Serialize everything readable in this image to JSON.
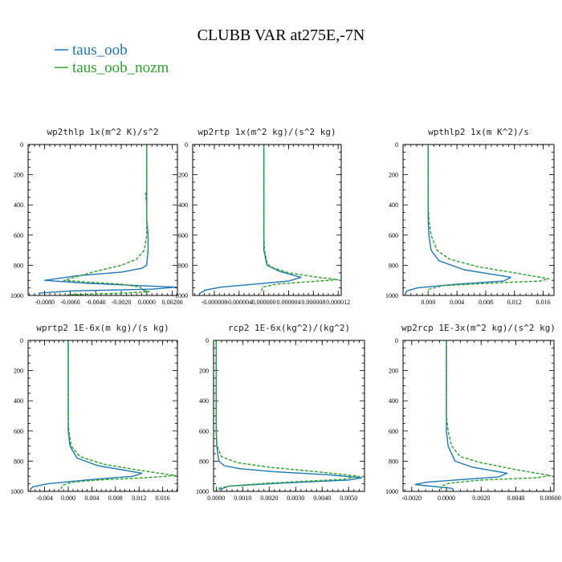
{
  "figure": {
    "title": "CLUBB VAR at275E,-7N",
    "legend": [
      {
        "label": "taus_oob",
        "color": "#1f77b4",
        "dash": "solid"
      },
      {
        "label": "taus_oob_nozm",
        "color": "#2ca02c",
        "dash": "dashed"
      }
    ]
  },
  "chart_data": [
    {
      "type": "line",
      "title": "wp2thlp  1x(m^2 K)/s^2",
      "xlim": [
        -0.0093,
        0.0024
      ],
      "ylim": [
        1000,
        0
      ],
      "xticks": [
        -0.008,
        -0.006,
        -0.004,
        -0.002,
        0,
        0.002
      ],
      "xticklabels": [
        "-0.0080",
        "-0.0060",
        "-0.0040",
        "-0.0020",
        "0.0000",
        "0.00200"
      ],
      "yticks": [
        0,
        200,
        400,
        600,
        800,
        1000
      ],
      "series": [
        {
          "name": "taus_oob",
          "x": [
            0,
            0,
            0,
            0,
            0,
            0,
            0.0001,
            0.0001,
            0,
            -0.0004,
            -0.002,
            -0.0055,
            -0.008,
            -0.0045,
            -0.0005,
            0.0023,
            0.0005,
            -0.006,
            -0.0085
          ],
          "y": [
            0,
            100,
            200,
            300,
            400,
            500,
            600,
            700,
            800,
            820,
            845,
            870,
            900,
            920,
            935,
            945,
            958,
            970,
            985
          ]
        },
        {
          "name": "taus_oob_nozm",
          "x": [
            0,
            0,
            0,
            0,
            -0.0001,
            0,
            0,
            0,
            -0.0002,
            -0.0008,
            -0.002,
            -0.004,
            -0.0065,
            -0.0048,
            -0.002,
            -0.0005,
            -0.0003,
            0.0002,
            -0.002,
            -0.0062
          ],
          "y": [
            0,
            100,
            200,
            300,
            320,
            400,
            500,
            600,
            700,
            760,
            800,
            840,
            900,
            910,
            925,
            945,
            965,
            975,
            985,
            995
          ]
        }
      ]
    },
    {
      "type": "line",
      "title": "wp2rtp  1x(m^2 kg)/(s^2 kg)",
      "xlim": [
        -1.15e-05,
        1.25e-05
      ],
      "ylim": [
        1000,
        0
      ],
      "xticks": [
        -8e-06,
        -4e-06,
        0,
        4e-06,
        8e-06,
        1.2e-05
      ],
      "xticklabels": [
        "-0.000008",
        "-0.000004",
        "0.000000",
        "0.000004",
        "0.000008",
        "0.000012"
      ],
      "yticks": [
        0,
        200,
        400,
        600,
        800,
        1000
      ],
      "series": [
        {
          "name": "taus_oob",
          "x": [
            0,
            0,
            0,
            0,
            0,
            0,
            0,
            0,
            5e-07,
            2.5e-06,
            6e-06,
            4e-06,
            -1.5e-06,
            -7e-06,
            -9.5e-06,
            -1.05e-05
          ],
          "y": [
            0,
            100,
            200,
            300,
            400,
            500,
            600,
            700,
            800,
            840,
            880,
            905,
            925,
            945,
            965,
            990
          ]
        },
        {
          "name": "taus_oob_nozm",
          "x": [
            0,
            0,
            0,
            0,
            0,
            0,
            0,
            1e-07,
            5e-07,
            1e-06,
            4e-06,
            8.8e-06,
            1.2e-05,
            7e-06,
            2e-06,
            -2e-07,
            -5e-07
          ],
          "y": [
            0,
            100,
            200,
            300,
            400,
            500,
            600,
            700,
            780,
            810,
            850,
            880,
            895,
            910,
            925,
            945,
            985
          ]
        }
      ]
    },
    {
      "type": "line",
      "title": "wpthlp2  1x(m K^2)/s",
      "xlim": [
        -0.0035,
        0.0175
      ],
      "ylim": [
        1000,
        0
      ],
      "xticks": [
        0,
        0.004,
        0.008,
        0.012,
        0.016
      ],
      "xticklabels": [
        "0.000",
        "0.004",
        "0.008",
        "0.012",
        "0.016"
      ],
      "yticks": [
        0,
        200,
        400,
        600,
        800,
        1000
      ],
      "series": [
        {
          "name": "taus_oob",
          "x": [
            0,
            0,
            0,
            0,
            0,
            0,
            0.0001,
            0.0004,
            0.0015,
            0.005,
            0.0115,
            0.0105,
            0.004,
            -0.0015,
            -0.003,
            -0.0032
          ],
          "y": [
            0,
            100,
            200,
            300,
            400,
            500,
            600,
            700,
            770,
            830,
            880,
            905,
            925,
            950,
            970,
            990
          ]
        },
        {
          "name": "taus_oob_nozm",
          "x": [
            0,
            0,
            0,
            0,
            0,
            0.0001,
            0.0004,
            0.0012,
            0.003,
            0.007,
            0.012,
            0.0168,
            0.0155,
            0.008,
            0.002,
            0.0001,
            0,
            0
          ],
          "y": [
            0,
            100,
            200,
            300,
            400,
            500,
            600,
            700,
            760,
            810,
            850,
            890,
            905,
            920,
            935,
            960,
            980,
            995
          ]
        }
      ]
    },
    {
      "type": "line",
      "title": "wprtp2  1E-6x(m kg)/(s kg)",
      "xlim": [
        -0.0068,
        0.0185
      ],
      "ylim": [
        1000,
        0
      ],
      "xticks": [
        -0.004,
        0,
        0.004,
        0.008,
        0.012,
        0.016
      ],
      "xticklabels": [
        "-0.004",
        "0.000",
        "0.004",
        "0.008",
        "0.012",
        "0.016"
      ],
      "yticks": [
        0,
        200,
        400,
        600,
        800,
        1000
      ],
      "series": [
        {
          "name": "taus_oob",
          "x": [
            0,
            0,
            0,
            0,
            0,
            0,
            0,
            0.0003,
            0.0015,
            0.005,
            0.0125,
            0.011,
            0.003,
            -0.0035,
            -0.006,
            -0.0065
          ],
          "y": [
            0,
            100,
            200,
            300,
            400,
            500,
            600,
            700,
            780,
            830,
            880,
            900,
            925,
            950,
            970,
            990
          ]
        },
        {
          "name": "taus_oob_nozm",
          "x": [
            0,
            0,
            0,
            0,
            0,
            0,
            0.0001,
            0.0005,
            0.002,
            0.006,
            0.012,
            0.0182,
            0.013,
            0.005,
            0.0005,
            -0.001,
            -0.0012,
            -0.0012
          ],
          "y": [
            0,
            100,
            200,
            300,
            400,
            500,
            600,
            700,
            770,
            820,
            860,
            895,
            910,
            925,
            940,
            960,
            980,
            995
          ]
        }
      ]
    },
    {
      "type": "line",
      "title": "rcp2  1E-6x(kg^2)/(kg^2)",
      "xlim": [
        -0.0001,
        0.0056
      ],
      "ylim": [
        1000,
        0
      ],
      "xticks": [
        0,
        0.001,
        0.002,
        0.003,
        0.004,
        0.005
      ],
      "xticklabels": [
        "0.0000",
        "0.0010",
        "0.0020",
        "0.0030",
        "0.0040",
        "0.0050"
      ],
      "yticks": [
        0,
        200,
        400,
        600,
        800,
        1000
      ],
      "series": [
        {
          "name": "taus_oob",
          "x": [
            0,
            0,
            0,
            0,
            0,
            0,
            0,
            2e-05,
            0.0001,
            0.0003,
            0.0009,
            0.0022,
            0.0042,
            0.0055,
            0.005,
            0.0025,
            0.0005,
            0.0001
          ],
          "y": [
            0,
            100,
            200,
            300,
            400,
            500,
            600,
            700,
            800,
            830,
            850,
            870,
            890,
            910,
            925,
            945,
            965,
            990
          ]
        },
        {
          "name": "taus_oob_nozm",
          "x": [
            0,
            0,
            0,
            0,
            0,
            0,
            0,
            3e-05,
            0.0002,
            0.0008,
            0.002,
            0.0038,
            0.0054,
            0.0048,
            0.002,
            0.0005,
            0.0001,
            0
          ],
          "y": [
            0,
            100,
            200,
            300,
            400,
            500,
            600,
            700,
            770,
            810,
            840,
            870,
            900,
            920,
            945,
            965,
            980,
            995
          ]
        }
      ]
    },
    {
      "type": "line",
      "title": "wp2rcp  1E-3x(m^2 kg)/(s^2 kg)",
      "xlim": [
        -0.0025,
        0.0062
      ],
      "ylim": [
        1000,
        0
      ],
      "xticks": [
        -0.002,
        0,
        0.002,
        0.004,
        0.006
      ],
      "xticklabels": [
        "-0.0020",
        "0.0000",
        "0.0020",
        "0.0040",
        "0.00600"
      ],
      "yticks": [
        0,
        200,
        400,
        600,
        800,
        1000
      ],
      "series": [
        {
          "name": "taus_oob",
          "x": [
            0,
            0,
            0,
            0,
            0,
            0,
            0,
            0.0001,
            0.0005,
            0.0015,
            0.0035,
            0.003,
            0.0005,
            -0.0012,
            -0.0018,
            -0.0005,
            0.0003,
            0.0004
          ],
          "y": [
            0,
            100,
            200,
            300,
            400,
            500,
            600,
            700,
            800,
            840,
            880,
            905,
            925,
            940,
            955,
            970,
            980,
            990
          ]
        },
        {
          "name": "taus_oob_nozm",
          "x": [
            0,
            0,
            0,
            0,
            0,
            0,
            0.0001,
            0.0003,
            0.0008,
            0.002,
            0.0042,
            0.006,
            0.0052,
            0.002,
            0.0002,
            -0.0003,
            -0.0003
          ],
          "y": [
            0,
            100,
            200,
            300,
            400,
            500,
            600,
            700,
            770,
            810,
            860,
            895,
            910,
            925,
            945,
            965,
            990
          ]
        }
      ]
    }
  ]
}
